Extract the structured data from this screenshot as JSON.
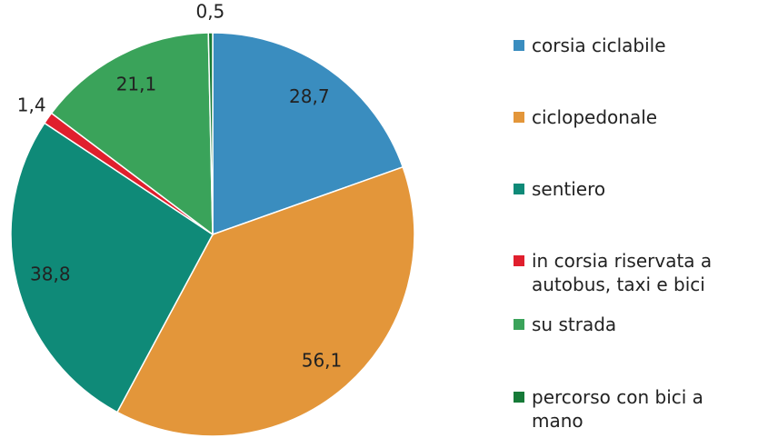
{
  "chart_data": {
    "type": "pie",
    "categories": [
      "corsia ciclabile",
      "ciclopedonale",
      "sentiero",
      "in corsia riservata a autobus, taxi e bici",
      "su strada",
      "percorso con bici a mano"
    ],
    "values": [
      28.7,
      56.1,
      38.8,
      1.4,
      21.1,
      0.5
    ],
    "value_labels": [
      "28,7",
      "56,1",
      "38,8",
      "1,4",
      "21,1",
      "0,5"
    ],
    "colors": [
      "#3a8dbf",
      "#e3963a",
      "#0f8a78",
      "#e01f2d",
      "#3aa35a",
      "#167a38"
    ],
    "legend": "right"
  }
}
